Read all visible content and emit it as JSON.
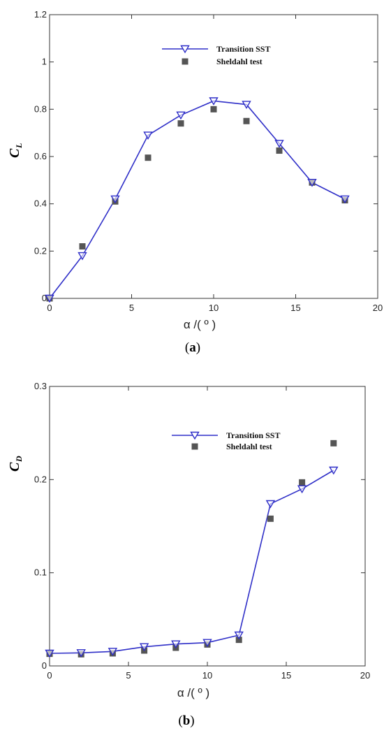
{
  "chart_data": [
    {
      "type": "line",
      "panel_label": "(a)",
      "panel_letter": "a",
      "ylabel": "C",
      "ylabel_sub": "L",
      "xlabel": "α /( º )",
      "xlim": [
        0,
        20
      ],
      "ylim": [
        0,
        1.2
      ],
      "xticks": [
        0,
        5,
        10,
        15,
        20
      ],
      "yticks": [
        0,
        0.2,
        0.4,
        0.6,
        0.8,
        1,
        1.2
      ],
      "ytick_labels": [
        "0",
        "0.2",
        "0.4",
        "0.6",
        "0.8",
        "1",
        "1.2"
      ],
      "legend_placement": "top-center",
      "series": [
        {
          "name": "Transition SST",
          "style": "line-with-hollow-down-triangles",
          "color": "#2f2fc8",
          "x": [
            0,
            2,
            4,
            6,
            8,
            10,
            12,
            14,
            16,
            18
          ],
          "y": [
            0.0,
            0.18,
            0.42,
            0.69,
            0.775,
            0.835,
            0.82,
            0.655,
            0.49,
            0.42
          ]
        },
        {
          "name": "Sheldahl test",
          "style": "filled-squares",
          "color": "#555555",
          "x": [
            0,
            2,
            4,
            6,
            8,
            10,
            12,
            14,
            16,
            18
          ],
          "y": [
            0.0,
            0.22,
            0.41,
            0.595,
            0.74,
            0.8,
            0.75,
            0.625,
            0.49,
            0.415
          ]
        }
      ]
    },
    {
      "type": "line",
      "panel_label": "(b)",
      "panel_letter": "b",
      "ylabel": "C",
      "ylabel_sub": "D",
      "xlabel": "α /( º )",
      "xlim": [
        0,
        20
      ],
      "ylim": [
        0,
        0.3
      ],
      "xticks": [
        0,
        5,
        10,
        15,
        20
      ],
      "yticks": [
        0,
        0.1,
        0.2,
        0.3
      ],
      "ytick_labels": [
        "0",
        "0.1",
        "0.2",
        "0.3"
      ],
      "legend_placement": "top-center",
      "series": [
        {
          "name": "Transition SST",
          "style": "line-with-hollow-down-triangles",
          "color": "#2f2fc8",
          "x": [
            0,
            2,
            4,
            6,
            8,
            10,
            12,
            14,
            16,
            18
          ],
          "y": [
            0.0135,
            0.014,
            0.0155,
            0.0205,
            0.0235,
            0.025,
            0.033,
            0.174,
            0.19,
            0.21
          ]
        },
        {
          "name": "Sheldahl test",
          "style": "filled-squares",
          "color": "#555555",
          "x": [
            0,
            2,
            4,
            6,
            8,
            10,
            12,
            14,
            16,
            18
          ],
          "y": [
            0.013,
            0.0125,
            0.0135,
            0.0165,
            0.0195,
            0.023,
            0.028,
            0.158,
            0.197,
            0.239
          ]
        }
      ]
    }
  ]
}
